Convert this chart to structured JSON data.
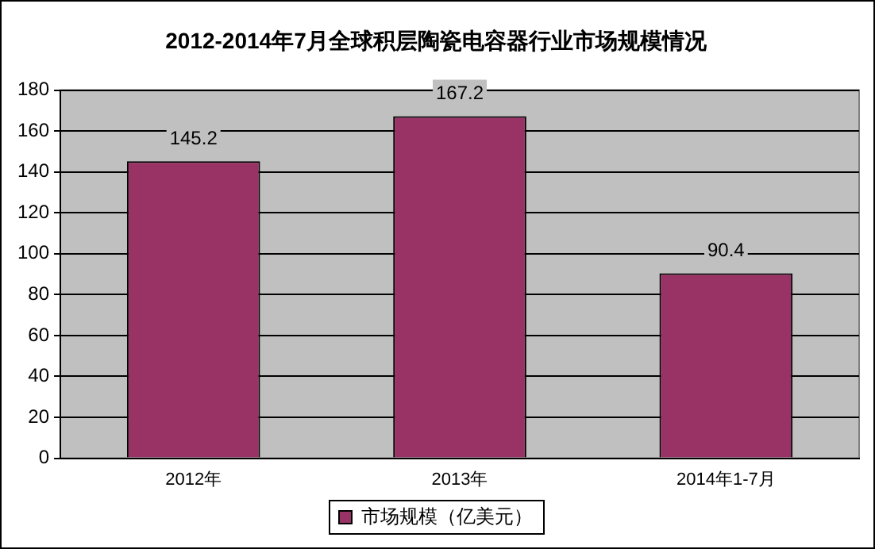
{
  "chart_data": {
    "type": "bar",
    "title": "2012-2014年7月全球积层陶瓷电容器行业市场规模情况",
    "categories": [
      "2012年",
      "2013年",
      "2014年1-7月"
    ],
    "series": [
      {
        "name": "市场规模（亿美元）",
        "color": "#993366",
        "values": [
          145.2,
          167.2,
          90.4
        ]
      }
    ],
    "ylim": [
      0,
      180
    ],
    "yticks": [
      0,
      20,
      40,
      60,
      80,
      100,
      120,
      140,
      160,
      180
    ],
    "grid": "y",
    "legend": "bottom",
    "data_labels": true
  }
}
